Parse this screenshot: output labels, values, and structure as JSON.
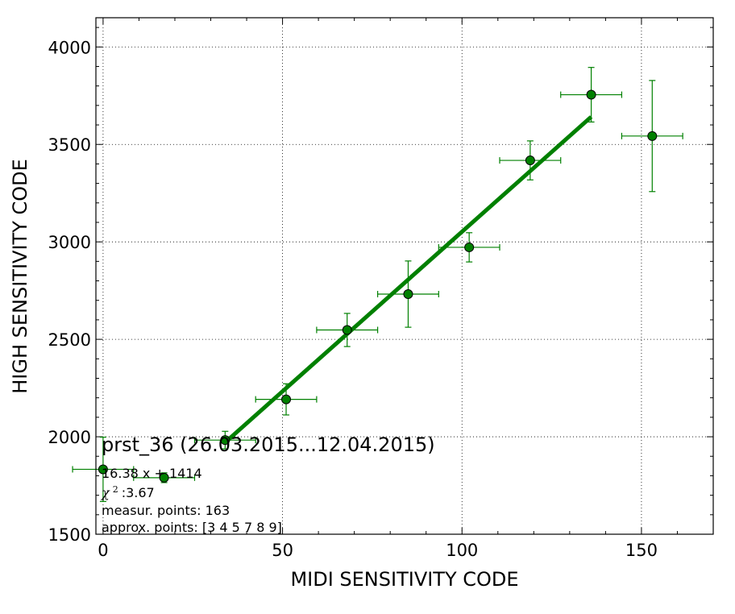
{
  "chart_data": {
    "type": "scatter",
    "title": "",
    "xlabel": "MIDI SENSITIVITY CODE",
    "ylabel": "HIGH SENSITIVITY CODE",
    "xlim": [
      -2,
      170
    ],
    "ylim": [
      1500,
      4150
    ],
    "xticks": [
      0,
      50,
      100,
      150
    ],
    "yticks": [
      1500,
      2000,
      2500,
      3000,
      3500,
      4000
    ],
    "grid": true,
    "series": [
      {
        "type": "errorbar",
        "color": "#008000",
        "marker_fill": "#008000",
        "points": [
          {
            "x": 0,
            "y": 1833,
            "xerr": 8.5,
            "yerr": 165
          },
          {
            "x": 17,
            "y": 1790,
            "xerr": 8.5,
            "yerr": 25
          },
          {
            "x": 34,
            "y": 1983,
            "xerr": 8.5,
            "yerr": 45
          },
          {
            "x": 51,
            "y": 2192,
            "xerr": 8.5,
            "yerr": 80
          },
          {
            "x": 68,
            "y": 2548,
            "xerr": 8.5,
            "yerr": 85
          },
          {
            "x": 85,
            "y": 2732,
            "xerr": 8.5,
            "yerr": 170
          },
          {
            "x": 102,
            "y": 2972,
            "xerr": 8.5,
            "yerr": 75
          },
          {
            "x": 119,
            "y": 3418,
            "xerr": 8.5,
            "yerr": 100
          },
          {
            "x": 136,
            "y": 3755,
            "xerr": 8.5,
            "yerr": 140
          },
          {
            "x": 153,
            "y": 3543,
            "xerr": 8.5,
            "yerr": 285
          }
        ]
      },
      {
        "type": "line",
        "color": "#008000",
        "fit": {
          "slope": 16.38,
          "intercept": 1414
        },
        "x_range": [
          34,
          136
        ]
      }
    ],
    "annotations": {
      "title": "prst_36 (26.03.2015...12.04.2015)",
      "fit_label": "16.38 x + 1414",
      "chi2_symbol": "χ",
      "chi2_sup": "2",
      "chi2_value": " :3.67",
      "measur_points": "measur. points: 163",
      "approx_points": "approx. points: [3 4 5 7 8 9]"
    }
  }
}
